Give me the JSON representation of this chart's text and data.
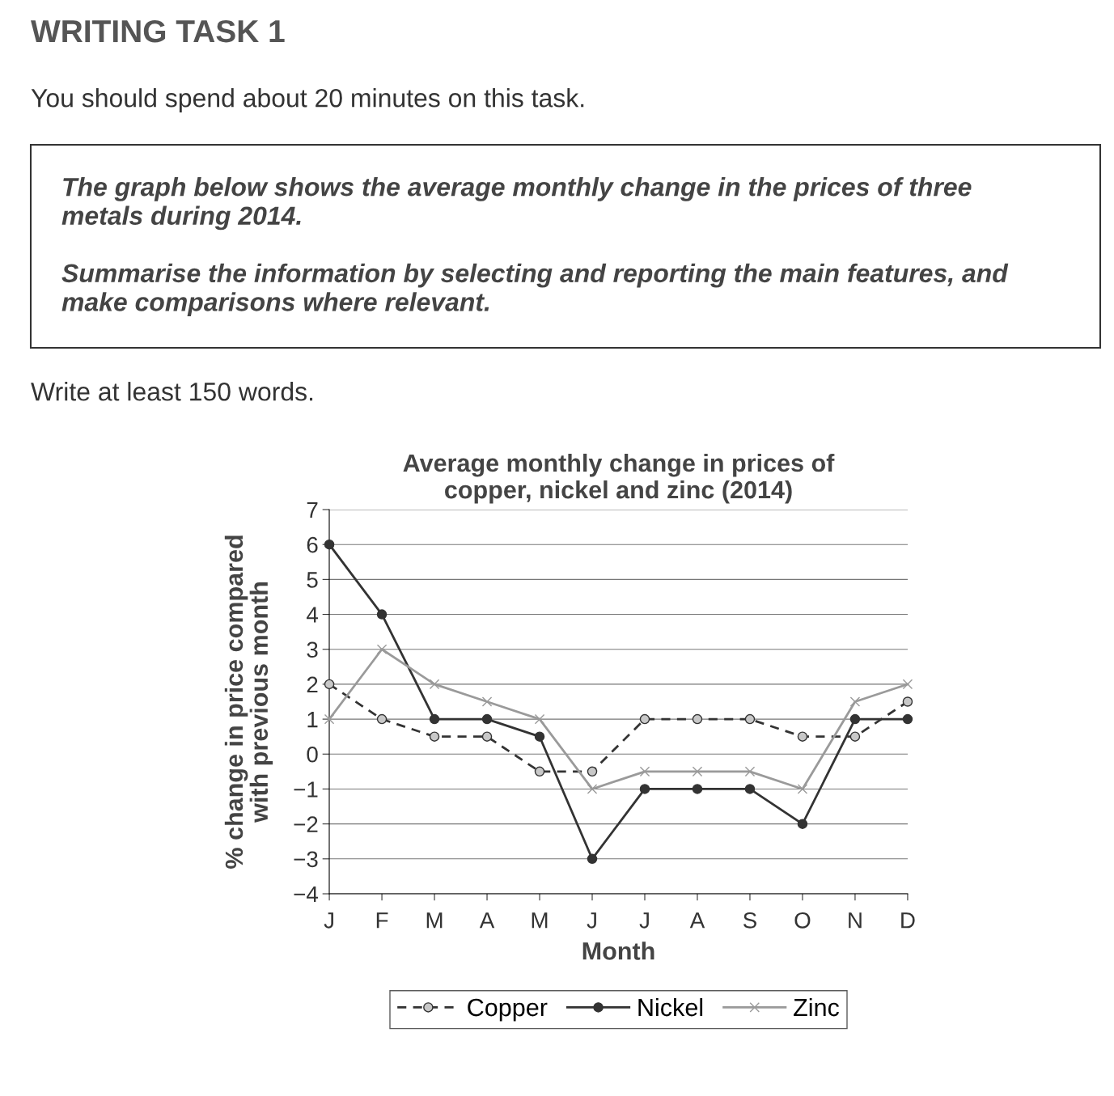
{
  "chart_data": {
    "type": "line",
    "title": "Average monthly change in prices of\ncopper, nickel and zinc (2014)",
    "xlabel": "Month",
    "ylabel": "% change in price compared\nwith previous month",
    "annotations": [
      "WRITING TASK 1",
      "You should spend about 20 minutes on this task.",
      "The graph below shows the average monthly change in the prices of three\nmetals during 2014.\n\nSummarise the information by selecting and reporting the main features, and\nmake comparisons where relevant.",
      "Write at least 150 words."
    ],
    "categories": [
      "J",
      "F",
      "M",
      "A",
      "M",
      "J",
      "J",
      "A",
      "S",
      "O",
      "N",
      "D"
    ],
    "series": [
      {
        "name": "Copper",
        "color": "#333333",
        "line_style": "dashed",
        "marker": "circle",
        "values": [
          2,
          1,
          0.5,
          0.5,
          -0.5,
          -0.5,
          1,
          1,
          1,
          0.5,
          0.5,
          1.5
        ]
      },
      {
        "name": "Nickel",
        "color": "#333333",
        "line_style": "solid",
        "marker": "circle",
        "values": [
          6,
          4,
          1,
          1,
          0.5,
          -3,
          -1,
          -1,
          -1,
          -2,
          1,
          1
        ]
      },
      {
        "name": "Zinc",
        "color": "#9a9a9a",
        "line_style": "solid",
        "marker": "cross",
        "values": [
          1,
          3,
          2,
          1.5,
          1,
          -1,
          -0.5,
          -0.5,
          -0.5,
          -1,
          1.5,
          2
        ]
      }
    ],
    "ylim": [
      -4,
      7
    ],
    "yticks": [
      {
        "value": -4,
        "label": "−4"
      },
      {
        "value": -3,
        "label": "−3"
      },
      {
        "value": -2,
        "label": "−2"
      },
      {
        "value": -1,
        "label": "−1"
      },
      0,
      1,
      2,
      3,
      4,
      5,
      6,
      7
    ],
    "grid": "y",
    "legend": "bottom"
  }
}
